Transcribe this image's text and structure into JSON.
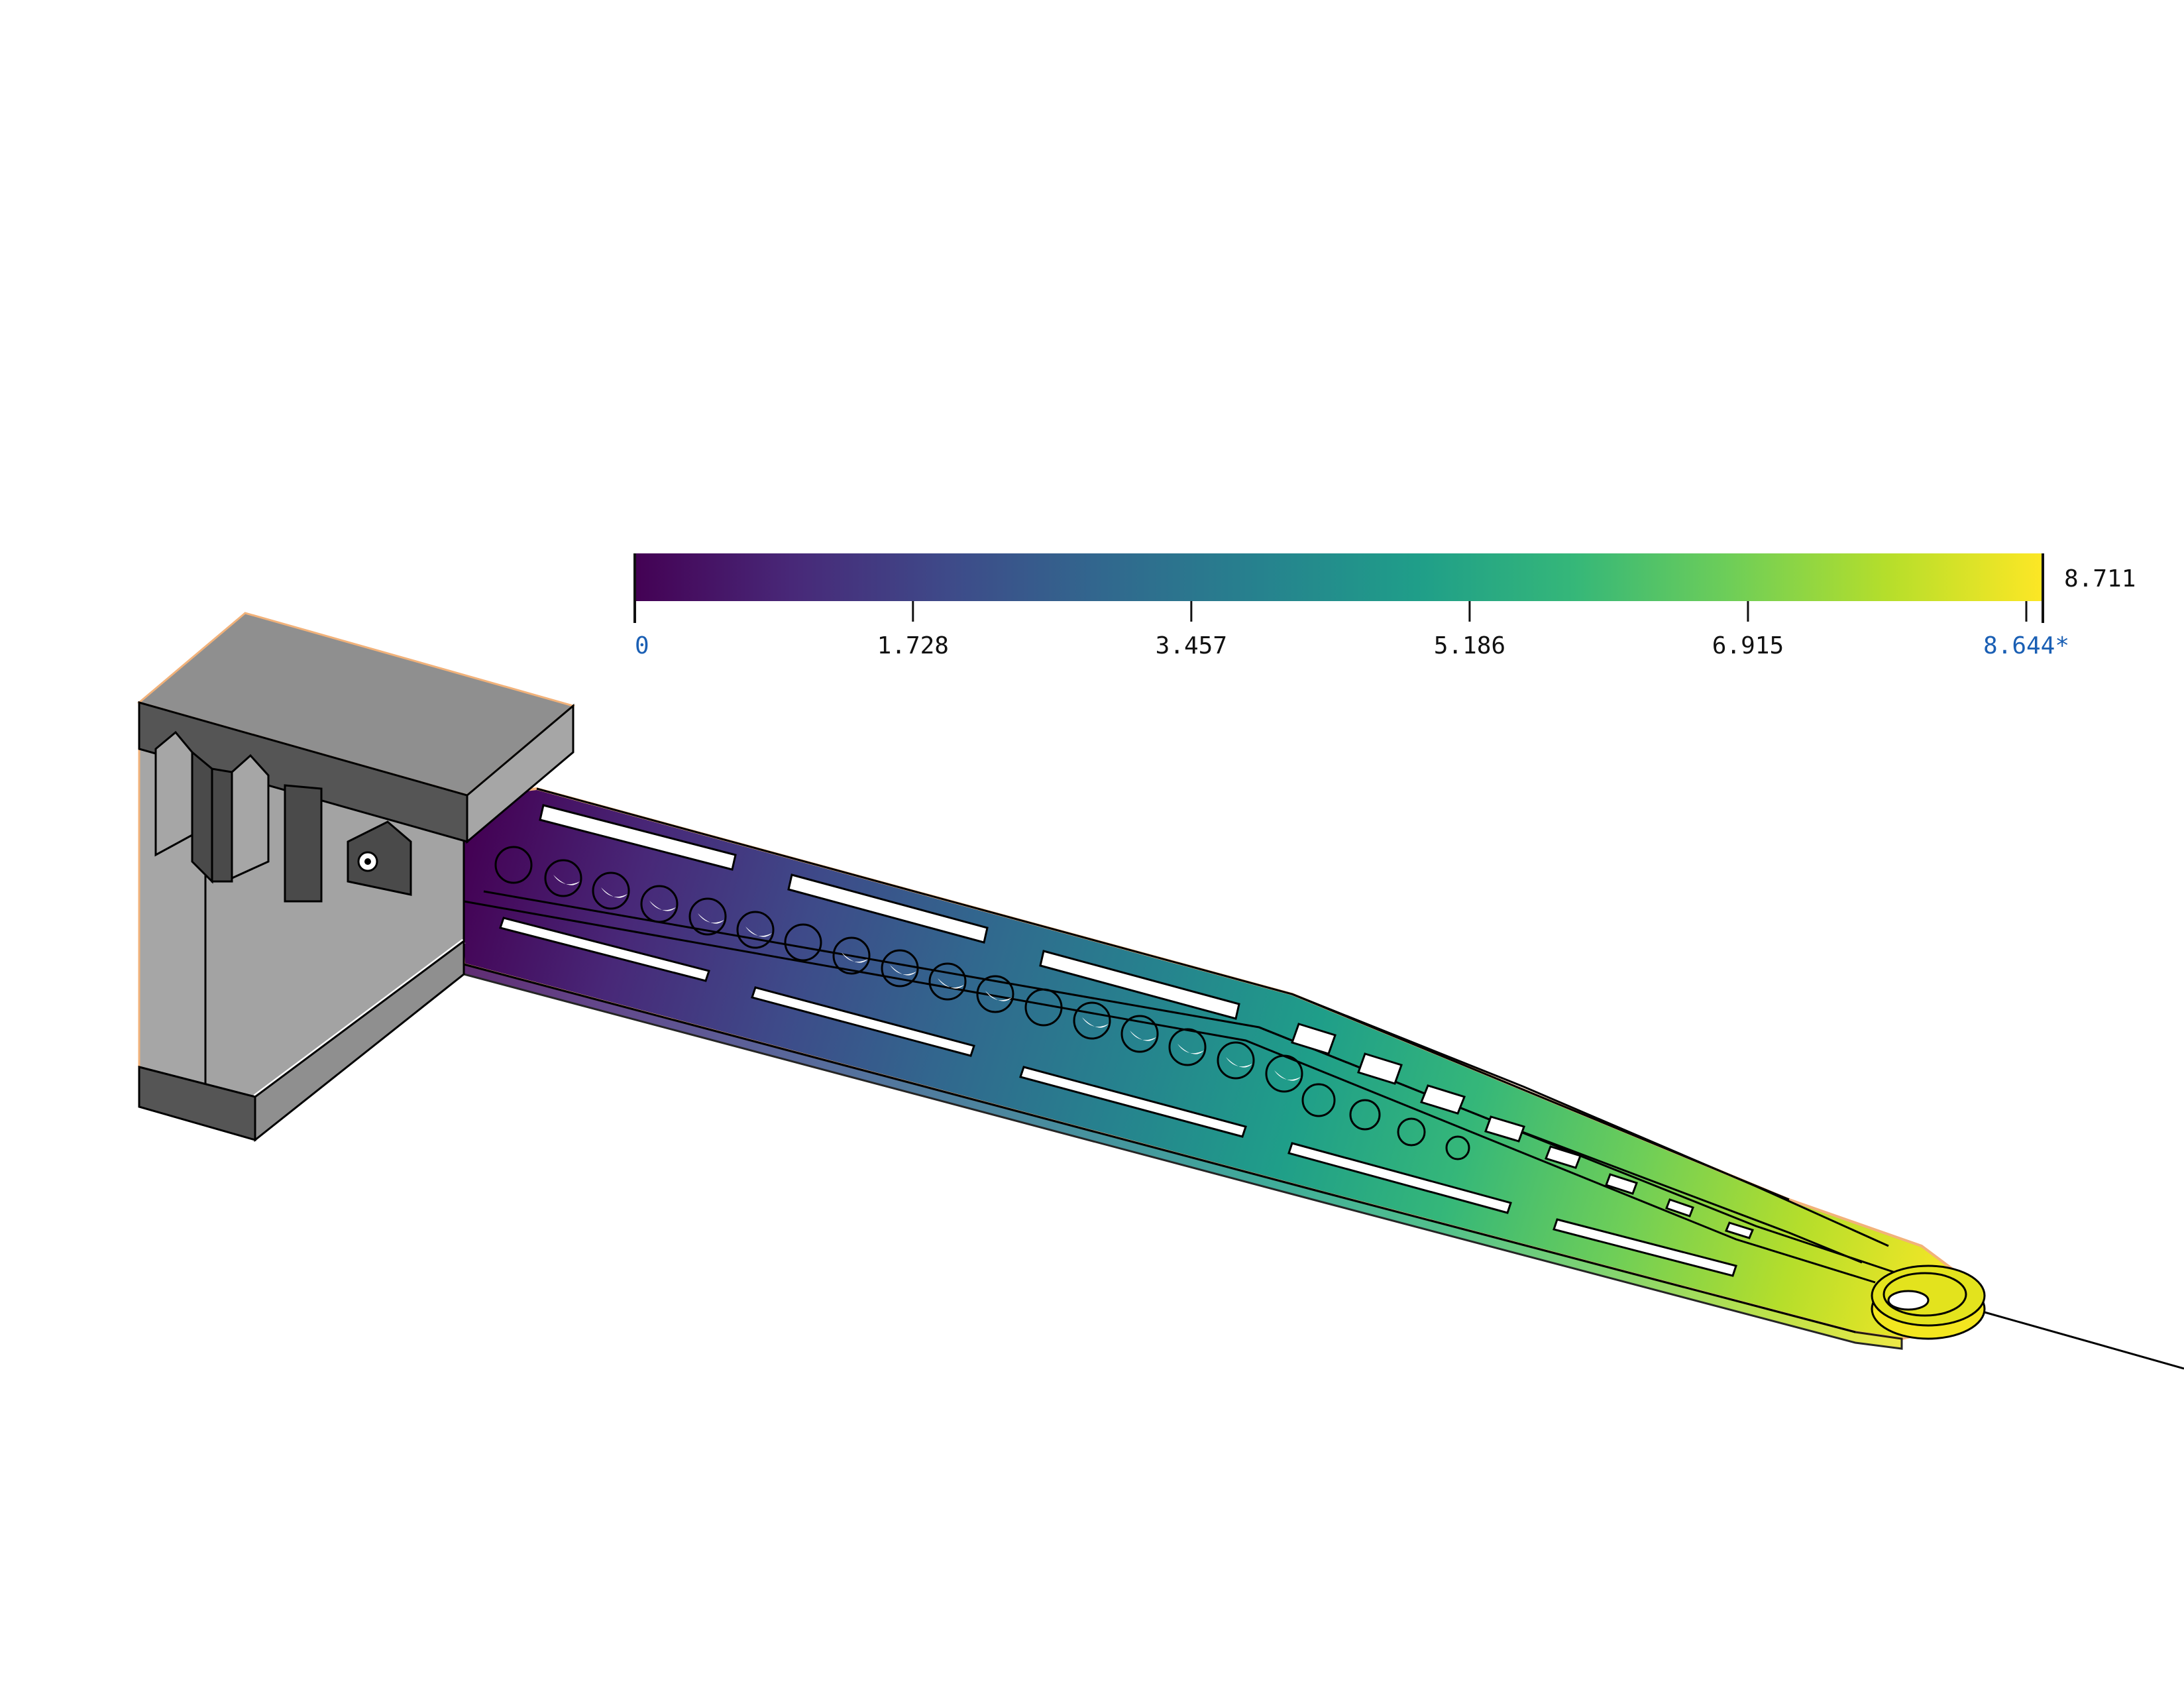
{
  "legend": {
    "colormap": "viridis",
    "gradient_stops": [
      "#440154",
      "#482878",
      "#3e4a89",
      "#31688e",
      "#26828e",
      "#1f9e89",
      "#35b779",
      "#6ece58",
      "#b5de2b",
      "#fde725"
    ],
    "ticks": [
      "0",
      "1.728",
      "3.457",
      "5.186",
      "6.915",
      "8.644*"
    ],
    "tick_values": [
      0,
      1.728,
      3.457,
      5.186,
      6.915,
      8.644
    ],
    "range": [
      0,
      8.711
    ],
    "max_label": "8.711",
    "highlight_color": "#1a5fb4",
    "tick_color": "#111111"
  },
  "model": {
    "fixture_colors": {
      "top": "#8f8f8f",
      "front": "#555555",
      "side": "#a6a6a6",
      "dark": "#4a4a4a",
      "highlight": "#ffffff"
    },
    "edge_color": "#f2b27a",
    "outline_color": "#000000"
  }
}
